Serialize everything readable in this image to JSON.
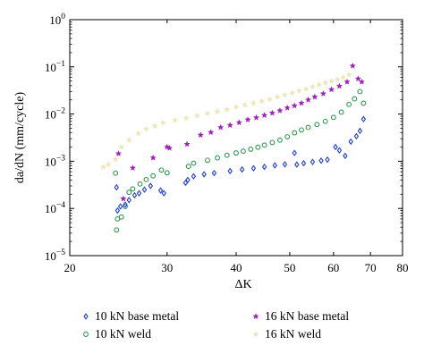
{
  "chart_data": {
    "type": "scatter",
    "xlabel": "ΔK",
    "ylabel": "da/dN (mm/cycle)",
    "xlim": [
      20,
      80
    ],
    "ylim": [
      1e-05,
      1
    ],
    "x_scale": "log",
    "y_scale": "log",
    "grid": false,
    "legend_position": "bottom",
    "x_ticks": [
      {
        "value": 20,
        "label": "20"
      },
      {
        "value": 30,
        "label": "30"
      },
      {
        "value": 40,
        "label": "40"
      },
      {
        "value": 50,
        "label": "50"
      },
      {
        "value": 60,
        "label": "60"
      },
      {
        "value": 70,
        "label": "70"
      },
      {
        "value": 80,
        "label": "80"
      }
    ],
    "y_ticks": [
      {
        "value": 1e-05,
        "base": "10",
        "exp": "−5"
      },
      {
        "value": 0.0001,
        "base": "10",
        "exp": "−4"
      },
      {
        "value": 0.001,
        "base": "10",
        "exp": "−3"
      },
      {
        "value": 0.01,
        "base": "10",
        "exp": "−2"
      },
      {
        "value": 0.1,
        "base": "10",
        "exp": "−1"
      },
      {
        "value": 1,
        "base": "10",
        "exp": "0"
      }
    ],
    "series": [
      {
        "name": "10 kN base metal",
        "marker": "diamond",
        "color": "#1f3fd6",
        "points": [
          [
            24.3,
            0.00028
          ],
          [
            24.4,
            9e-05
          ],
          [
            24.7,
            0.00011
          ],
          [
            25.2,
            0.00012
          ],
          [
            25.6,
            0.00015
          ],
          [
            26.2,
            0.00019
          ],
          [
            26.7,
            0.00021
          ],
          [
            27.3,
            0.00025
          ],
          [
            28.0,
            0.0003
          ],
          [
            29.2,
            0.00024
          ],
          [
            29.6,
            0.00021
          ],
          [
            32.4,
            0.00035
          ],
          [
            32.7,
            0.0004
          ],
          [
            33.5,
            0.00048
          ],
          [
            35.0,
            0.00053
          ],
          [
            36.5,
            0.00056
          ],
          [
            39.0,
            0.00062
          ],
          [
            41.0,
            0.00067
          ],
          [
            43.0,
            0.00071
          ],
          [
            45.0,
            0.00076
          ],
          [
            47.0,
            0.00082
          ],
          [
            49.0,
            0.00086
          ],
          [
            51.0,
            0.0015
          ],
          [
            51.5,
            0.00085
          ],
          [
            53.0,
            0.00091
          ],
          [
            55.0,
            0.00097
          ],
          [
            57.0,
            0.00103
          ],
          [
            58.5,
            0.00108
          ],
          [
            60.5,
            0.002
          ],
          [
            61.5,
            0.0017
          ],
          [
            63.0,
            0.0013
          ],
          [
            64.5,
            0.0026
          ],
          [
            66.0,
            0.0034
          ],
          [
            67.0,
            0.0044
          ],
          [
            68.0,
            0.0078
          ]
        ]
      },
      {
        "name": "10 kN weld",
        "marker": "circle",
        "color": "#2e9a4e",
        "points": [
          [
            24.2,
            0.00056
          ],
          [
            24.3,
            3.5e-05
          ],
          [
            24.4,
            6e-05
          ],
          [
            24.8,
            6.6e-05
          ],
          [
            25.2,
            0.00011
          ],
          [
            25.6,
            0.00022
          ],
          [
            26.0,
            0.00026
          ],
          [
            26.8,
            0.00033
          ],
          [
            27.5,
            0.00041
          ],
          [
            28.3,
            0.00049
          ],
          [
            29.3,
            0.00065
          ],
          [
            30.0,
            0.00057
          ],
          [
            32.8,
            0.00078
          ],
          [
            33.5,
            0.00091
          ],
          [
            35.5,
            0.00105
          ],
          [
            37.0,
            0.00118
          ],
          [
            38.5,
            0.00134
          ],
          [
            40.0,
            0.0015
          ],
          [
            41.2,
            0.00163
          ],
          [
            42.5,
            0.0018
          ],
          [
            43.8,
            0.00198
          ],
          [
            45.0,
            0.0022
          ],
          [
            46.5,
            0.0025
          ],
          [
            48.0,
            0.0028
          ],
          [
            49.5,
            0.0033
          ],
          [
            51.0,
            0.004
          ],
          [
            52.5,
            0.0046
          ],
          [
            54.0,
            0.0052
          ],
          [
            56.0,
            0.006
          ],
          [
            58.0,
            0.007
          ],
          [
            60.0,
            0.0085
          ],
          [
            62.0,
            0.011
          ],
          [
            64.0,
            0.016
          ],
          [
            65.5,
            0.021
          ],
          [
            67.0,
            0.03
          ],
          [
            68.0,
            0.017
          ]
        ]
      },
      {
        "name": "16 kN base metal",
        "marker": "star",
        "color": "#a020b8",
        "points": [
          [
            24.5,
            0.00145
          ],
          [
            25.0,
            0.00016
          ],
          [
            26.0,
            0.00072
          ],
          [
            28.3,
            0.00118
          ],
          [
            30.0,
            0.002
          ],
          [
            30.3,
            0.0019
          ],
          [
            32.6,
            0.0023
          ],
          [
            34.5,
            0.0036
          ],
          [
            36.0,
            0.0041
          ],
          [
            37.5,
            0.0052
          ],
          [
            39.0,
            0.0058
          ],
          [
            40.5,
            0.0066
          ],
          [
            42.0,
            0.0076
          ],
          [
            43.5,
            0.0084
          ],
          [
            45.0,
            0.0094
          ],
          [
            46.5,
            0.0105
          ],
          [
            48.0,
            0.0118
          ],
          [
            49.5,
            0.0135
          ],
          [
            51.0,
            0.015
          ],
          [
            52.5,
            0.017
          ],
          [
            54.0,
            0.02
          ],
          [
            55.5,
            0.023
          ],
          [
            57.5,
            0.027
          ],
          [
            59.5,
            0.033
          ],
          [
            61.5,
            0.039
          ],
          [
            63.5,
            0.048
          ],
          [
            65.0,
            0.105
          ],
          [
            66.5,
            0.056
          ],
          [
            67.5,
            0.048
          ]
        ]
      },
      {
        "name": "16 kN weld",
        "marker": "star",
        "color": "#ece6b8",
        "points": [
          [
            23.0,
            0.00075
          ],
          [
            23.5,
            0.00085
          ],
          [
            24.2,
            0.0011
          ],
          [
            24.8,
            0.002
          ],
          [
            25.6,
            0.0028
          ],
          [
            26.6,
            0.0039
          ],
          [
            27.5,
            0.0048
          ],
          [
            28.5,
            0.0056
          ],
          [
            29.5,
            0.0065
          ],
          [
            31.0,
            0.0074
          ],
          [
            32.5,
            0.0082
          ],
          [
            34.0,
            0.0092
          ],
          [
            35.5,
            0.0103
          ],
          [
            37.0,
            0.0113
          ],
          [
            38.5,
            0.0125
          ],
          [
            40.0,
            0.014
          ],
          [
            41.5,
            0.0155
          ],
          [
            43.0,
            0.017
          ],
          [
            44.5,
            0.0186
          ],
          [
            46.0,
            0.0205
          ],
          [
            47.5,
            0.023
          ],
          [
            49.0,
            0.0255
          ],
          [
            50.5,
            0.028
          ],
          [
            52.0,
            0.031
          ],
          [
            53.5,
            0.034
          ],
          [
            55.0,
            0.038
          ],
          [
            56.5,
            0.042
          ],
          [
            58.0,
            0.046
          ],
          [
            59.5,
            0.05
          ],
          [
            61.0,
            0.054
          ],
          [
            62.5,
            0.06
          ],
          [
            64.0,
            0.068
          ]
        ]
      }
    ]
  }
}
